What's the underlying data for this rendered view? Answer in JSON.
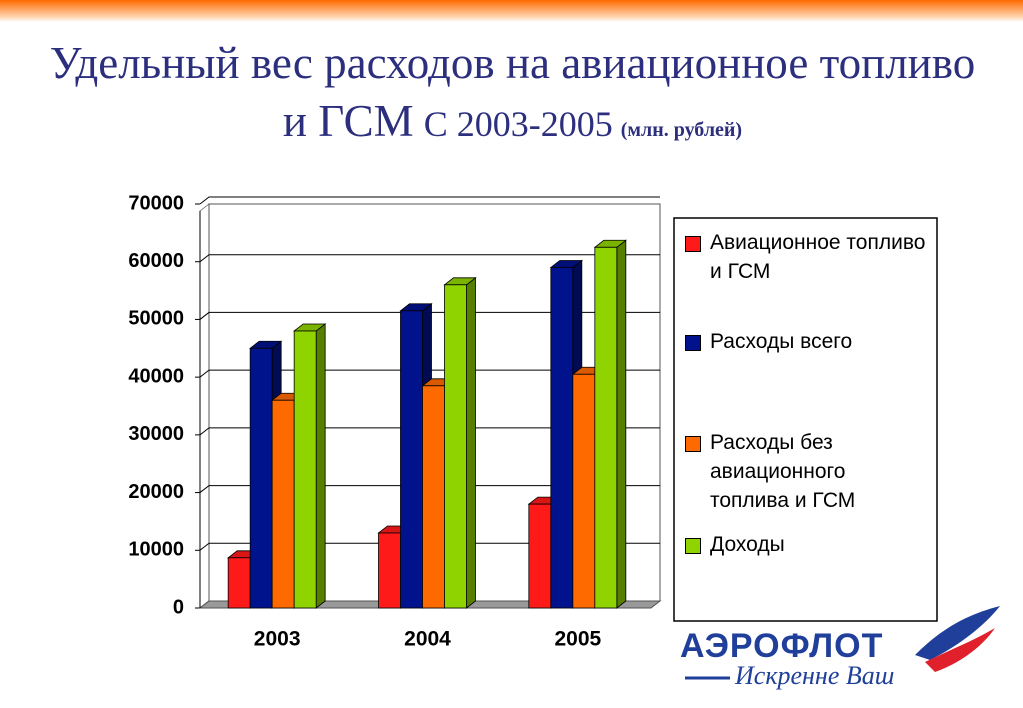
{
  "chart_data": {
    "type": "bar3d",
    "title": "Удельный вес расходов на авиационное топливо и ГСМ",
    "subtitle": "С 2003-2005",
    "units": "(млн. рублей)",
    "categories": [
      "2003",
      "2004",
      "2005"
    ],
    "series": [
      {
        "name": "Авиационное топливо и ГСМ",
        "color": "#ff1a1a",
        "values": [
          8700,
          13000,
          18000
        ]
      },
      {
        "name": "Расходы всего",
        "color": "#00128c",
        "values": [
          45000,
          51500,
          59000
        ]
      },
      {
        "name": "Расходы без авиационного топлива и ГСМ",
        "color": "#ff6a00",
        "values": [
          36000,
          38500,
          40500
        ]
      },
      {
        "name": "Доходы",
        "color": "#8fd400",
        "values": [
          48000,
          56000,
          62500
        ]
      }
    ],
    "ylim": [
      0,
      70000
    ],
    "yticks": [
      0,
      10000,
      20000,
      30000,
      40000,
      50000,
      60000,
      70000
    ],
    "grid": true
  },
  "logo": {
    "name": "АЭРОФЛОТ",
    "slogan": "Искренне Ваш"
  }
}
